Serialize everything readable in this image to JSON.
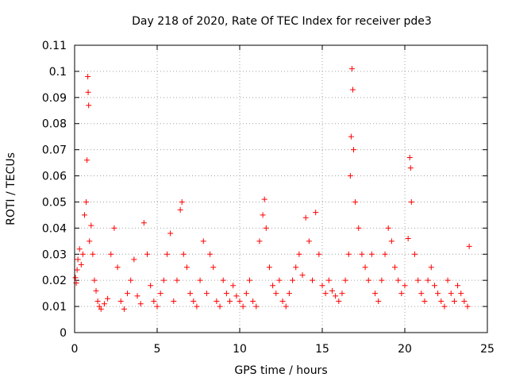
{
  "chart_data": {
    "type": "scatter",
    "title": "Day 218 of 2020, Rate Of TEC Index for receiver pde3",
    "xlabel": "GPS time / hours",
    "ylabel": "ROTI / TECUs",
    "xlim": [
      0,
      25
    ],
    "ylim": [
      0,
      0.11
    ],
    "x_ticks": [
      "0",
      "5",
      "10",
      "15",
      "20",
      "25"
    ],
    "y_ticks": [
      "0",
      "0.01",
      "0.02",
      "0.03",
      "0.04",
      "0.05",
      "0.06",
      "0.07",
      "0.08",
      "0.09",
      "0.1",
      "0.11"
    ],
    "x_tick_values": [
      0,
      5,
      10,
      15,
      20,
      25
    ],
    "y_tick_values": [
      0,
      0.01,
      0.02,
      0.03,
      0.04,
      0.05,
      0.06,
      0.07,
      0.08,
      0.09,
      0.1,
      0.11
    ],
    "grid": true,
    "marker": "+",
    "color": "#ff0000",
    "series": [
      {
        "x": [
          0.05,
          0.1,
          0.15,
          0.2,
          0.3,
          0.4,
          0.5,
          0.6,
          0.7,
          0.75,
          0.8,
          0.82,
          0.85,
          0.9,
          1.0,
          1.1,
          1.2,
          1.3,
          1.4,
          1.5,
          1.6,
          1.8,
          2.0,
          2.2,
          2.4,
          2.6,
          2.8,
          3.0,
          3.2,
          3.4,
          3.6,
          3.8,
          4.0,
          4.2,
          4.4,
          4.6,
          4.8,
          5.0,
          5.2,
          5.4,
          5.6,
          5.8,
          6.0,
          6.2,
          6.4,
          6.5,
          6.6,
          6.8,
          7.0,
          7.2,
          7.4,
          7.6,
          7.8,
          8.0,
          8.2,
          8.4,
          8.6,
          8.8,
          9.0,
          9.2,
          9.4,
          9.6,
          9.8,
          10.0,
          10.2,
          10.4,
          10.6,
          10.8,
          11.0,
          11.2,
          11.4,
          11.5,
          11.6,
          11.8,
          12.0,
          12.2,
          12.4,
          12.6,
          12.8,
          13.0,
          13.2,
          13.4,
          13.6,
          13.8,
          14.0,
          14.2,
          14.4,
          14.6,
          14.8,
          15.0,
          15.2,
          15.4,
          15.6,
          15.8,
          16.0,
          16.2,
          16.4,
          16.6,
          16.7,
          16.75,
          16.8,
          16.85,
          16.9,
          17.0,
          17.2,
          17.4,
          17.6,
          17.8,
          18.0,
          18.2,
          18.4,
          18.6,
          18.8,
          19.0,
          19.2,
          19.4,
          19.6,
          19.8,
          20.0,
          20.2,
          20.3,
          20.35,
          20.4,
          20.6,
          20.8,
          21.0,
          21.2,
          21.4,
          21.6,
          21.8,
          22.0,
          22.2,
          22.4,
          22.6,
          22.8,
          23.0,
          23.2,
          23.4,
          23.6,
          23.8,
          23.9
        ],
        "y": [
          0.021,
          0.019,
          0.024,
          0.028,
          0.032,
          0.026,
          0.03,
          0.045,
          0.05,
          0.066,
          0.098,
          0.092,
          0.087,
          0.035,
          0.041,
          0.03,
          0.02,
          0.016,
          0.012,
          0.01,
          0.009,
          0.011,
          0.013,
          0.03,
          0.04,
          0.025,
          0.012,
          0.009,
          0.015,
          0.02,
          0.028,
          0.014,
          0.011,
          0.042,
          0.03,
          0.018,
          0.012,
          0.01,
          0.015,
          0.02,
          0.03,
          0.038,
          0.012,
          0.02,
          0.047,
          0.05,
          0.03,
          0.025,
          0.015,
          0.012,
          0.01,
          0.02,
          0.035,
          0.015,
          0.03,
          0.025,
          0.012,
          0.01,
          0.02,
          0.015,
          0.012,
          0.018,
          0.014,
          0.012,
          0.01,
          0.015,
          0.02,
          0.012,
          0.01,
          0.035,
          0.045,
          0.051,
          0.04,
          0.025,
          0.018,
          0.015,
          0.02,
          0.012,
          0.01,
          0.015,
          0.02,
          0.025,
          0.03,
          0.022,
          0.044,
          0.035,
          0.02,
          0.046,
          0.03,
          0.018,
          0.015,
          0.02,
          0.016,
          0.014,
          0.012,
          0.015,
          0.02,
          0.03,
          0.06,
          0.075,
          0.101,
          0.093,
          0.07,
          0.05,
          0.04,
          0.03,
          0.025,
          0.02,
          0.03,
          0.015,
          0.012,
          0.02,
          0.03,
          0.04,
          0.035,
          0.025,
          0.02,
          0.015,
          0.018,
          0.036,
          0.067,
          0.063,
          0.05,
          0.03,
          0.02,
          0.015,
          0.012,
          0.02,
          0.025,
          0.018,
          0.015,
          0.012,
          0.01,
          0.02,
          0.015,
          0.012,
          0.018,
          0.015,
          0.012,
          0.01,
          0.033
        ]
      }
    ]
  }
}
